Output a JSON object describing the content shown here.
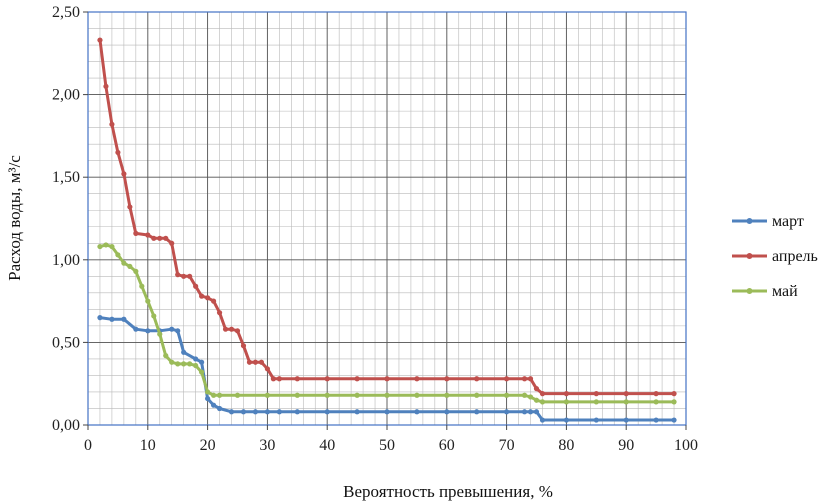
{
  "chart_data": {
    "type": "line",
    "title": "",
    "xlabel": "Вероятность превышения, %",
    "ylabel": "Расход воды, м³/с",
    "xlim": [
      0,
      100
    ],
    "ylim": [
      0,
      2.5
    ],
    "x_ticks": [
      0,
      10,
      20,
      30,
      40,
      50,
      60,
      70,
      80,
      90,
      100
    ],
    "x_tick_labels": [
      "0",
      "10",
      "20",
      "30",
      "40",
      "50",
      "60",
      "70",
      "80",
      "90",
      "100"
    ],
    "y_ticks": [
      0,
      0.5,
      1.0,
      1.5,
      2.0,
      2.5
    ],
    "y_tick_labels": [
      "0,00",
      "0,50",
      "1,00",
      "1,50",
      "2,00",
      "2,50"
    ],
    "grid": true,
    "legend_position": "right",
    "series": [
      {
        "name": "март",
        "color": "#4f81bd",
        "x": [
          2,
          4,
          6,
          8,
          10,
          12,
          14,
          15,
          16,
          18,
          19,
          20,
          21,
          22,
          24,
          26,
          28,
          30,
          32,
          35,
          40,
          45,
          50,
          55,
          60,
          65,
          70,
          73,
          74,
          75,
          76,
          80,
          85,
          90,
          95,
          98
        ],
        "y": [
          0.65,
          0.64,
          0.64,
          0.58,
          0.57,
          0.57,
          0.58,
          0.57,
          0.44,
          0.4,
          0.38,
          0.16,
          0.12,
          0.1,
          0.08,
          0.08,
          0.08,
          0.08,
          0.08,
          0.08,
          0.08,
          0.08,
          0.08,
          0.08,
          0.08,
          0.08,
          0.08,
          0.08,
          0.08,
          0.08,
          0.03,
          0.03,
          0.03,
          0.03,
          0.03,
          0.03
        ]
      },
      {
        "name": "апрель",
        "color": "#c0504d",
        "x": [
          2,
          3,
          4,
          5,
          6,
          7,
          8,
          10,
          11,
          12,
          13,
          14,
          15,
          16,
          17,
          18,
          19,
          20,
          21,
          22,
          23,
          24,
          25,
          26,
          27,
          28,
          29,
          30,
          31,
          32,
          35,
          40,
          45,
          50,
          55,
          60,
          65,
          70,
          73,
          74,
          75,
          76,
          80,
          85,
          90,
          95,
          98
        ],
        "y": [
          2.33,
          2.05,
          1.82,
          1.65,
          1.52,
          1.32,
          1.16,
          1.15,
          1.13,
          1.13,
          1.13,
          1.1,
          0.91,
          0.9,
          0.9,
          0.84,
          0.78,
          0.77,
          0.75,
          0.68,
          0.58,
          0.58,
          0.57,
          0.48,
          0.38,
          0.38,
          0.38,
          0.34,
          0.28,
          0.28,
          0.28,
          0.28,
          0.28,
          0.28,
          0.28,
          0.28,
          0.28,
          0.28,
          0.28,
          0.28,
          0.22,
          0.19,
          0.19,
          0.19,
          0.19,
          0.19,
          0.19
        ]
      },
      {
        "name": "май",
        "color": "#9bbb59",
        "x": [
          2,
          3,
          4,
          5,
          6,
          7,
          8,
          9,
          10,
          11,
          12,
          13,
          14,
          15,
          16,
          17,
          18,
          19,
          20,
          21,
          22,
          25,
          30,
          35,
          40,
          45,
          50,
          55,
          60,
          65,
          70,
          73,
          74,
          75,
          76,
          80,
          85,
          90,
          95,
          98
        ],
        "y": [
          1.08,
          1.09,
          1.08,
          1.03,
          0.98,
          0.96,
          0.93,
          0.84,
          0.75,
          0.66,
          0.55,
          0.42,
          0.38,
          0.37,
          0.37,
          0.37,
          0.36,
          0.32,
          0.2,
          0.18,
          0.18,
          0.18,
          0.18,
          0.18,
          0.18,
          0.18,
          0.18,
          0.18,
          0.18,
          0.18,
          0.18,
          0.18,
          0.17,
          0.15,
          0.14,
          0.14,
          0.14,
          0.14,
          0.14,
          0.14
        ]
      }
    ]
  }
}
